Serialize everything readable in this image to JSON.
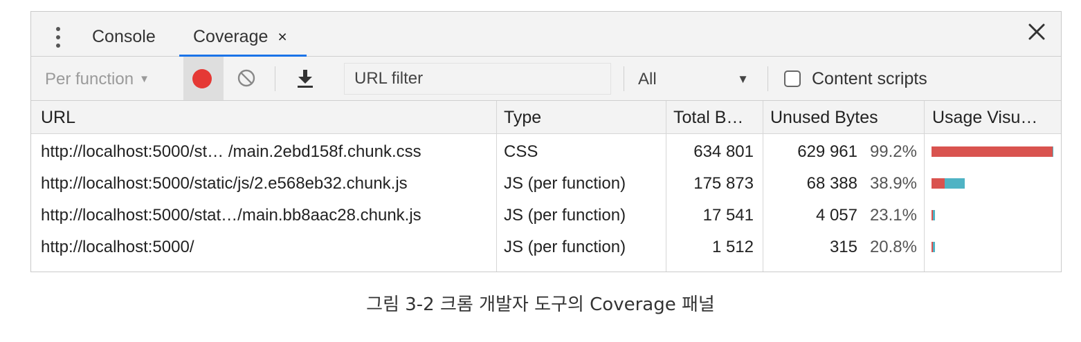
{
  "tabs": {
    "console": "Console",
    "coverage": "Coverage",
    "close_glyph": "×"
  },
  "toolbar": {
    "per_function": "Per function",
    "url_filter_placeholder": "URL filter",
    "type_filter": "All",
    "content_scripts": "Content scripts",
    "content_scripts_checked": false
  },
  "columns": {
    "url": "URL",
    "type": "Type",
    "total": "Total B…",
    "unused": "Unused Bytes",
    "usage": "Usage Visu…"
  },
  "rows": [
    {
      "url": "http://localhost:5000/st… /main.2ebd158f.chunk.css",
      "type": "CSS",
      "total": "634 801",
      "unused": "629 961",
      "pct": "99.2%",
      "total_bytes": 634801,
      "unused_fraction": 0.992
    },
    {
      "url": "http://localhost:5000/static/js/2.e568eb32.chunk.js",
      "type": "JS (per function)",
      "total": "175 873",
      "unused": "68 388",
      "pct": "38.9%",
      "total_bytes": 175873,
      "unused_fraction": 0.389
    },
    {
      "url": "http://localhost:5000/stat…/main.bb8aac28.chunk.js",
      "type": "JS (per function)",
      "total": "17 541",
      "unused": "4 057",
      "pct": "23.1%",
      "total_bytes": 17541,
      "unused_fraction": 0.231
    },
    {
      "url": "http://localhost:5000/",
      "type": "JS (per function)",
      "total": "1 512",
      "unused": "315",
      "pct": "20.8%",
      "total_bytes": 1512,
      "unused_fraction": 0.208
    }
  ],
  "colors": {
    "unused": "#d9534f",
    "used": "#4fb3c4",
    "record": "#e53935",
    "tab_underline": "#1a73e8"
  },
  "caption": "그림 3-2 크롬 개발자 도구의 Coverage 패널"
}
